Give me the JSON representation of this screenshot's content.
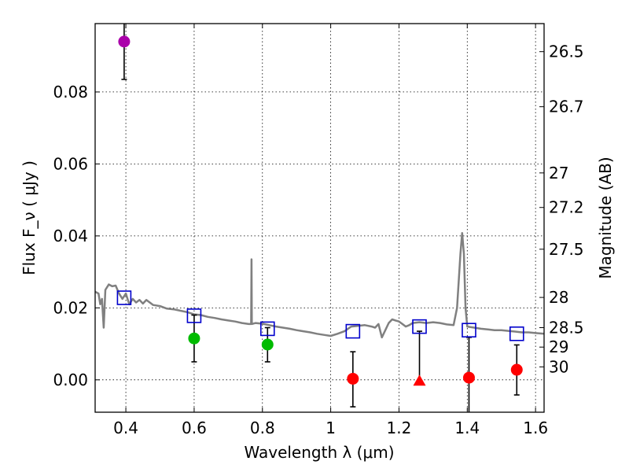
{
  "chart_data": {
    "type": "scatter",
    "xlabel": "Wavelength  λ (μm)",
    "ylabel": "Flux  F_ν  ( μJy )",
    "ylabel_right": "Magnitude (AB)",
    "xlim": [
      0.31,
      1.625
    ],
    "ylim": [
      -0.009,
      0.099
    ],
    "x_ticks": [
      "0.4",
      "0.6",
      "0.8",
      "1",
      "1.2",
      "1.4",
      "1.6"
    ],
    "y_ticks": [
      "0.00",
      "0.02",
      "0.04",
      "0.06",
      "0.08"
    ],
    "right_ticks": [
      {
        "label": "26.5",
        "flux": 0.0912
      },
      {
        "label": "26.7",
        "flux": 0.0759
      },
      {
        "label": "27",
        "flux": 0.0575
      },
      {
        "label": "27.2",
        "flux": 0.0479
      },
      {
        "label": "27.5",
        "flux": 0.0363
      },
      {
        "label": "28",
        "flux": 0.0229
      },
      {
        "label": "28.5",
        "flux": 0.0145
      },
      {
        "label": "29",
        "flux": 0.0091
      },
      {
        "label": "30",
        "flux": 0.0036
      }
    ],
    "model_spectrum": {
      "color": "#808080",
      "points": [
        [
          0.31,
          0.0245
        ],
        [
          0.32,
          0.024
        ],
        [
          0.325,
          0.021
        ],
        [
          0.33,
          0.0225
        ],
        [
          0.335,
          0.0145
        ],
        [
          0.34,
          0.025
        ],
        [
          0.35,
          0.0265
        ],
        [
          0.36,
          0.026
        ],
        [
          0.37,
          0.0262
        ],
        [
          0.38,
          0.024
        ],
        [
          0.39,
          0.0225
        ],
        [
          0.4,
          0.024
        ],
        [
          0.41,
          0.021
        ],
        [
          0.42,
          0.0225
        ],
        [
          0.43,
          0.0215
        ],
        [
          0.44,
          0.0222
        ],
        [
          0.45,
          0.0212
        ],
        [
          0.46,
          0.0222
        ],
        [
          0.47,
          0.0215
        ],
        [
          0.48,
          0.0208
        ],
        [
          0.5,
          0.0205
        ],
        [
          0.52,
          0.0198
        ],
        [
          0.54,
          0.0196
        ],
        [
          0.56,
          0.0192
        ],
        [
          0.58,
          0.0188
        ],
        [
          0.6,
          0.0182
        ],
        [
          0.62,
          0.018
        ],
        [
          0.64,
          0.0175
        ],
        [
          0.66,
          0.0172
        ],
        [
          0.68,
          0.0168
        ],
        [
          0.7,
          0.0165
        ],
        [
          0.72,
          0.0162
        ],
        [
          0.74,
          0.0158
        ],
        [
          0.76,
          0.0155
        ],
        [
          0.767,
          0.0155
        ],
        [
          0.768,
          0.0335
        ],
        [
          0.769,
          0.0155
        ],
        [
          0.78,
          0.0158
        ],
        [
          0.8,
          0.0156
        ],
        [
          0.82,
          0.0152
        ],
        [
          0.84,
          0.0148
        ],
        [
          0.86,
          0.0145
        ],
        [
          0.88,
          0.0142
        ],
        [
          0.9,
          0.0138
        ],
        [
          0.92,
          0.0135
        ],
        [
          0.94,
          0.0132
        ],
        [
          0.96,
          0.0128
        ],
        [
          0.98,
          0.0125
        ],
        [
          1.0,
          0.0122
        ],
        [
          1.02,
          0.0128
        ],
        [
          1.04,
          0.0135
        ],
        [
          1.06,
          0.0148
        ],
        [
          1.08,
          0.015
        ],
        [
          1.1,
          0.0152
        ],
        [
          1.12,
          0.0148
        ],
        [
          1.13,
          0.0145
        ],
        [
          1.14,
          0.0155
        ],
        [
          1.15,
          0.0118
        ],
        [
          1.16,
          0.0138
        ],
        [
          1.17,
          0.0158
        ],
        [
          1.18,
          0.0168
        ],
        [
          1.19,
          0.0165
        ],
        [
          1.2,
          0.0162
        ],
        [
          1.21,
          0.0155
        ],
        [
          1.22,
          0.0148
        ],
        [
          1.23,
          0.0152
        ],
        [
          1.24,
          0.0158
        ],
        [
          1.26,
          0.016
        ],
        [
          1.28,
          0.0158
        ],
        [
          1.3,
          0.016
        ],
        [
          1.32,
          0.0158
        ],
        [
          1.34,
          0.0154
        ],
        [
          1.36,
          0.0152
        ],
        [
          1.37,
          0.02
        ],
        [
          1.38,
          0.035
        ],
        [
          1.385,
          0.0408
        ],
        [
          1.39,
          0.035
        ],
        [
          1.395,
          0.02
        ],
        [
          1.4,
          0.0148
        ],
        [
          1.42,
          0.0145
        ],
        [
          1.44,
          0.0142
        ],
        [
          1.46,
          0.014
        ],
        [
          1.48,
          0.0138
        ],
        [
          1.5,
          0.0138
        ],
        [
          1.52,
          0.0136
        ],
        [
          1.54,
          0.0134
        ],
        [
          1.56,
          0.0132
        ],
        [
          1.58,
          0.0132
        ],
        [
          1.6,
          0.013
        ],
        [
          1.625,
          0.0128
        ]
      ]
    },
    "model_points": {
      "marker": "open-square",
      "color": "#0000cc",
      "x": [
        0.395,
        0.6,
        0.815,
        1.065,
        1.26,
        1.405,
        1.545
      ],
      "y": [
        0.0228,
        0.0178,
        0.0142,
        0.0135,
        0.0148,
        0.0138,
        0.0128
      ]
    },
    "observed_points": [
      {
        "x": 0.395,
        "y": 0.094,
        "err_low": 0.0835,
        "err_high": 0.101,
        "color": "#aa00aa",
        "marker": "circle"
      },
      {
        "x": 0.6,
        "y": 0.0115,
        "err_low": 0.005,
        "err_high": 0.018,
        "color": "#00bb00",
        "marker": "circle"
      },
      {
        "x": 0.815,
        "y": 0.0098,
        "err_low": 0.005,
        "err_high": 0.0145,
        "color": "#00bb00",
        "marker": "circle"
      },
      {
        "x": 1.065,
        "y": 0.0003,
        "err_low": -0.0075,
        "err_high": 0.0078,
        "color": "#ff0000",
        "marker": "circle"
      },
      {
        "x": 1.26,
        "y": -0.0003,
        "err_low": -0.0003,
        "err_high": 0.0135,
        "color": "#ff0000",
        "marker": "triangle"
      },
      {
        "x": 1.405,
        "y": 0.0006,
        "err_low": -0.0095,
        "err_high": 0.0118,
        "color": "#ff0000",
        "marker": "circle"
      },
      {
        "x": 1.545,
        "y": 0.0028,
        "err_low": -0.0042,
        "err_high": 0.0097,
        "color": "#ff0000",
        "marker": "circle"
      }
    ]
  }
}
